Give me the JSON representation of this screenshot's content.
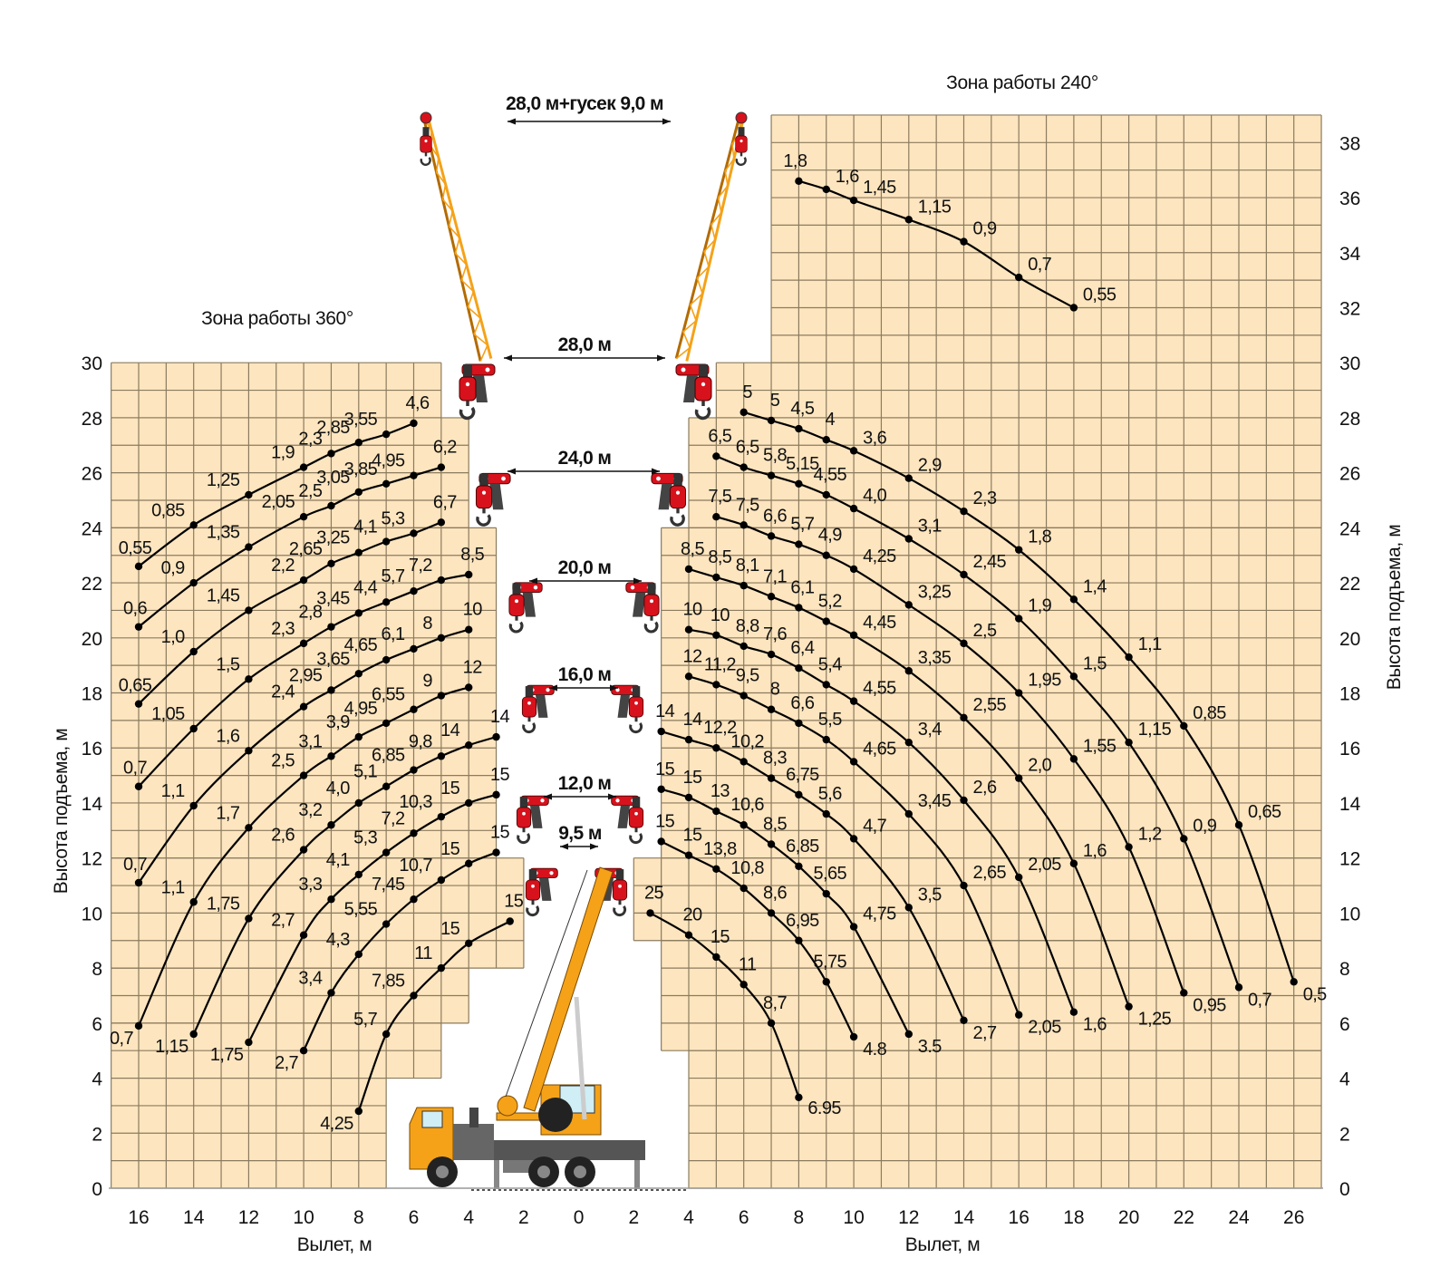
{
  "titles": {
    "zone_360": "Зона работы 360°",
    "zone_240": "Зона работы 240°"
  },
  "booms": {
    "jib": "28,0 м+гусек 9,0 м",
    "b28": "28,0 м",
    "b24": "24,0 м",
    "b20": "20,0 м",
    "b16": "16,0 м",
    "b12": "12,0 м",
    "b9_5": "9,5 м"
  },
  "axes": {
    "x_label_left": "Вылет, м",
    "x_label_right": "Вылет, м",
    "y_label_left": "Высота подъема, м",
    "y_label_right": "Высота подъема, м"
  },
  "colors": {
    "zone_fill": "#FDE5BF",
    "grid": "#8B7B5E",
    "curve": "#000000",
    "boom": "#F5A219",
    "hook_block": "#D7121C"
  },
  "chart_data": {
    "type": "line",
    "x_unit": "Вылет, м",
    "y_unit": "Высота подъема, м",
    "x_ticks_left": [
      16,
      14,
      12,
      10,
      8,
      6,
      4,
      2
    ],
    "x_tick_center": 0,
    "x_ticks_right": [
      2,
      4,
      6,
      8,
      10,
      12,
      14,
      16,
      18,
      20,
      22,
      24,
      26
    ],
    "y_ticks_left": [
      0,
      2,
      4,
      6,
      8,
      10,
      12,
      14,
      16,
      18,
      20,
      22,
      24,
      26,
      28,
      30
    ],
    "y_ticks_right": [
      0,
      2,
      4,
      6,
      8,
      10,
      12,
      14,
      16,
      18,
      20,
      22,
      24,
      26,
      28,
      30,
      32,
      34,
      36,
      38
    ],
    "xlim_left": [
      0,
      17
    ],
    "xlim_right": [
      0,
      27
    ],
    "ylim_left": [
      0,
      30
    ],
    "ylim_right": [
      0,
      39
    ],
    "grid": true,
    "point_format": [
      "radius_m",
      "height_m",
      "load_t"
    ],
    "zone_360_curves": [
      {
        "points": [
          [
            16,
            22.6,
            "0,55"
          ],
          [
            14,
            24.1,
            "0,85"
          ],
          [
            12,
            25.2,
            "1,25"
          ],
          [
            10,
            26.2,
            "1,9"
          ],
          [
            9,
            26.7,
            "2,3"
          ],
          [
            8,
            27.1,
            "2,85"
          ],
          [
            7,
            27.4,
            "3,55"
          ],
          [
            6,
            27.8,
            "4,6"
          ]
        ]
      },
      {
        "points": [
          [
            16,
            20.4,
            "0,6"
          ],
          [
            14,
            22.0,
            "0,9"
          ],
          [
            12,
            23.3,
            "1,35"
          ],
          [
            10,
            24.4,
            "2,05"
          ],
          [
            9,
            24.8,
            "2,5"
          ],
          [
            8,
            25.3,
            "3,05"
          ],
          [
            7,
            25.6,
            "3,85"
          ],
          [
            6,
            25.9,
            "4,95"
          ],
          [
            5,
            26.2,
            "6,2"
          ]
        ]
      },
      {
        "points": [
          [
            16,
            17.6,
            "0,65"
          ],
          [
            14,
            19.5,
            "1,0"
          ],
          [
            12,
            21.0,
            "1,45"
          ],
          [
            10,
            22.1,
            "2,2"
          ],
          [
            9,
            22.7,
            "2,65"
          ],
          [
            8,
            23.1,
            "3,25"
          ],
          [
            7,
            23.5,
            "4,1"
          ],
          [
            6,
            23.8,
            "5,3"
          ],
          [
            5,
            24.2,
            "6,7"
          ]
        ]
      },
      {
        "points": [
          [
            16,
            14.6,
            "0,7"
          ],
          [
            14,
            16.7,
            "1,05"
          ],
          [
            12,
            18.5,
            "1,5"
          ],
          [
            10,
            19.8,
            "2,3"
          ],
          [
            9,
            20.4,
            "2,8"
          ],
          [
            8,
            20.9,
            "3,45"
          ],
          [
            7,
            21.3,
            "4,4"
          ],
          [
            6,
            21.7,
            "5,7"
          ],
          [
            5,
            22.1,
            "7,2"
          ],
          [
            4,
            22.3,
            "8,5"
          ]
        ]
      },
      {
        "points": [
          [
            16,
            11.1,
            "0,7"
          ],
          [
            14,
            13.9,
            "1,1"
          ],
          [
            12,
            15.9,
            "1,6"
          ],
          [
            10,
            17.5,
            "2,4"
          ],
          [
            9,
            18.1,
            "2,95"
          ],
          [
            8,
            18.7,
            "3,65"
          ],
          [
            7,
            19.2,
            "4,65"
          ],
          [
            6,
            19.6,
            "6,1"
          ],
          [
            5,
            20.0,
            "8"
          ],
          [
            4,
            20.3,
            "10"
          ]
        ]
      },
      {
        "points": [
          [
            16,
            5.9,
            "0,7"
          ],
          [
            14,
            10.4,
            "1,1"
          ],
          [
            12,
            13.1,
            "1,7"
          ],
          [
            10,
            15.0,
            "2,5"
          ],
          [
            9,
            15.7,
            "3,1"
          ],
          [
            8,
            16.4,
            "3,9"
          ],
          [
            7,
            16.9,
            "4,95"
          ],
          [
            6,
            17.4,
            "6,55"
          ],
          [
            5,
            17.9,
            "9"
          ],
          [
            4,
            18.2,
            "12"
          ]
        ]
      },
      {
        "points": [
          [
            14,
            5.6,
            "1,15"
          ],
          [
            12,
            9.8,
            "1,75"
          ],
          [
            10,
            12.3,
            "2,6"
          ],
          [
            9,
            13.2,
            "3,2"
          ],
          [
            8,
            14.0,
            "4,0"
          ],
          [
            7,
            14.6,
            "5,1"
          ],
          [
            6,
            15.2,
            "6,85"
          ],
          [
            5,
            15.7,
            "9,8"
          ],
          [
            4,
            16.1,
            "14"
          ],
          [
            3,
            16.4,
            "14"
          ]
        ]
      },
      {
        "points": [
          [
            12,
            5.3,
            "1,75"
          ],
          [
            10,
            9.2,
            "2,7"
          ],
          [
            9,
            10.5,
            "3,3"
          ],
          [
            8,
            11.4,
            "4,1"
          ],
          [
            7,
            12.2,
            "5,3"
          ],
          [
            6,
            12.9,
            "7,2"
          ],
          [
            5,
            13.5,
            "10,3"
          ],
          [
            4,
            14.0,
            "15"
          ],
          [
            3,
            14.3,
            "15"
          ]
        ]
      },
      {
        "points": [
          [
            10,
            5.0,
            "2,7"
          ],
          [
            9,
            7.1,
            "3,4"
          ],
          [
            8,
            8.5,
            "4,3"
          ],
          [
            7,
            9.6,
            "5,55"
          ],
          [
            6,
            10.5,
            "7,45"
          ],
          [
            5,
            11.2,
            "10,7"
          ],
          [
            4,
            11.8,
            "15"
          ],
          [
            3,
            12.2,
            "15"
          ]
        ]
      },
      {
        "points": [
          [
            8,
            2.8,
            "4,25"
          ],
          [
            7,
            5.6,
            "5,7"
          ],
          [
            6,
            7.0,
            "7,85"
          ],
          [
            5,
            8.0,
            "11"
          ],
          [
            4,
            8.9,
            "15"
          ],
          [
            2.5,
            9.7,
            "15"
          ]
        ]
      }
    ],
    "zone_240_curves": [
      {
        "points": [
          [
            8,
            36.6,
            "1,8"
          ],
          [
            9,
            36.3,
            "1,6"
          ],
          [
            10,
            35.9,
            "1,45"
          ],
          [
            12,
            35.2,
            "1,15"
          ],
          [
            14,
            34.4,
            "0,9"
          ],
          [
            16,
            33.1,
            "0,7"
          ],
          [
            18,
            32.0,
            "0,55"
          ]
        ]
      },
      {
        "points": [
          [
            6,
            28.2,
            "5"
          ],
          [
            7,
            27.9,
            "5"
          ],
          [
            8,
            27.6,
            "4,5"
          ],
          [
            9,
            27.2,
            "4"
          ],
          [
            10,
            26.8,
            "3,6"
          ],
          [
            12,
            25.8,
            "2,9"
          ],
          [
            14,
            24.6,
            "2,3"
          ],
          [
            16,
            23.2,
            "1,8"
          ],
          [
            18,
            21.4,
            "1,4"
          ],
          [
            20,
            19.3,
            "1,1"
          ],
          [
            22,
            16.8,
            "0,85"
          ],
          [
            24,
            13.2,
            "0,65"
          ],
          [
            26,
            7.5,
            "0,5"
          ]
        ]
      },
      {
        "points": [
          [
            5,
            26.6,
            "6,5"
          ],
          [
            6,
            26.2,
            "6,5"
          ],
          [
            7,
            25.9,
            "5,8"
          ],
          [
            8,
            25.6,
            "5,15"
          ],
          [
            9,
            25.2,
            "4,55"
          ],
          [
            10,
            24.7,
            "4,0"
          ],
          [
            12,
            23.6,
            "3,1"
          ],
          [
            14,
            22.3,
            "2,45"
          ],
          [
            16,
            20.7,
            "1,9"
          ],
          [
            18,
            18.6,
            "1,5"
          ],
          [
            20,
            16.2,
            "1,15"
          ],
          [
            22,
            12.7,
            "0,9"
          ],
          [
            24,
            7.3,
            "0,7"
          ]
        ]
      },
      {
        "points": [
          [
            5,
            24.4,
            "7,5"
          ],
          [
            6,
            24.1,
            "7,5"
          ],
          [
            7,
            23.7,
            "6,6"
          ],
          [
            8,
            23.4,
            "5,7"
          ],
          [
            9,
            23.0,
            "4,9"
          ],
          [
            10,
            22.5,
            "4,25"
          ],
          [
            12,
            21.2,
            "3,25"
          ],
          [
            14,
            19.8,
            "2,5"
          ],
          [
            16,
            18.0,
            "1,95"
          ],
          [
            18,
            15.6,
            "1,55"
          ],
          [
            20,
            12.4,
            "1,2"
          ],
          [
            22,
            7.1,
            "0,95"
          ]
        ]
      },
      {
        "points": [
          [
            4,
            22.5,
            "8,5"
          ],
          [
            5,
            22.2,
            "8,5"
          ],
          [
            6,
            21.9,
            "8,1"
          ],
          [
            7,
            21.5,
            "7,1"
          ],
          [
            8,
            21.1,
            "6,1"
          ],
          [
            9,
            20.6,
            "5,2"
          ],
          [
            10,
            20.1,
            "4,45"
          ],
          [
            12,
            18.8,
            "3,35"
          ],
          [
            14,
            17.1,
            "2,55"
          ],
          [
            16,
            14.9,
            "2,0"
          ],
          [
            18,
            11.8,
            "1,6"
          ],
          [
            20,
            6.6,
            "1,25"
          ]
        ]
      },
      {
        "points": [
          [
            4,
            20.3,
            "10"
          ],
          [
            5,
            20.1,
            "10"
          ],
          [
            6,
            19.7,
            "8,8"
          ],
          [
            7,
            19.4,
            "7,6"
          ],
          [
            8,
            18.9,
            "6,4"
          ],
          [
            9,
            18.3,
            "5,4"
          ],
          [
            10,
            17.7,
            "4,55"
          ],
          [
            12,
            16.2,
            "3,4"
          ],
          [
            14,
            14.1,
            "2,6"
          ],
          [
            16,
            11.3,
            "2,05"
          ],
          [
            18,
            6.4,
            "1,6"
          ]
        ]
      },
      {
        "points": [
          [
            4,
            18.6,
            "12"
          ],
          [
            5,
            18.3,
            "11,2"
          ],
          [
            6,
            17.9,
            "9,5"
          ],
          [
            7,
            17.4,
            "8"
          ],
          [
            8,
            16.9,
            "6,6"
          ],
          [
            9,
            16.3,
            "5,5"
          ],
          [
            10,
            15.5,
            "4,65"
          ],
          [
            12,
            13.6,
            "3,45"
          ],
          [
            14,
            11.0,
            "2,65"
          ],
          [
            16,
            6.3,
            "2,05"
          ]
        ]
      },
      {
        "points": [
          [
            3,
            16.6,
            "14"
          ],
          [
            4,
            16.3,
            "14"
          ],
          [
            5,
            16.0,
            "12,2"
          ],
          [
            6,
            15.5,
            "10,2"
          ],
          [
            7,
            14.9,
            "8,3"
          ],
          [
            8,
            14.3,
            "6,75"
          ],
          [
            9,
            13.6,
            "5,6"
          ],
          [
            10,
            12.7,
            "4,7"
          ],
          [
            12,
            10.2,
            "3,5"
          ],
          [
            14,
            6.1,
            "2,7"
          ]
        ]
      },
      {
        "points": [
          [
            3,
            14.5,
            "15"
          ],
          [
            4,
            14.2,
            "15"
          ],
          [
            5,
            13.7,
            "13"
          ],
          [
            6,
            13.2,
            "10,6"
          ],
          [
            7,
            12.5,
            "8,5"
          ],
          [
            8,
            11.7,
            "6,85"
          ],
          [
            9,
            10.7,
            "5,65"
          ],
          [
            10,
            9.5,
            "4,75"
          ],
          [
            12,
            5.6,
            "3.5"
          ]
        ]
      },
      {
        "points": [
          [
            3,
            12.6,
            "15"
          ],
          [
            4,
            12.1,
            "15"
          ],
          [
            5,
            11.6,
            "13,8"
          ],
          [
            6,
            10.9,
            "10,8"
          ],
          [
            7,
            10.0,
            "8,6"
          ],
          [
            8,
            9.0,
            "6,95"
          ],
          [
            9,
            7.5,
            "5,75"
          ],
          [
            10,
            5.5,
            "4.8"
          ]
        ]
      },
      {
        "points": [
          [
            2.6,
            10.0,
            "25"
          ],
          [
            4,
            9.2,
            "20"
          ],
          [
            5,
            8.4,
            "15"
          ],
          [
            6,
            7.4,
            "11"
          ],
          [
            7,
            6.0,
            "8,7"
          ],
          [
            8,
            3.3,
            "6.95"
          ]
        ]
      }
    ]
  }
}
